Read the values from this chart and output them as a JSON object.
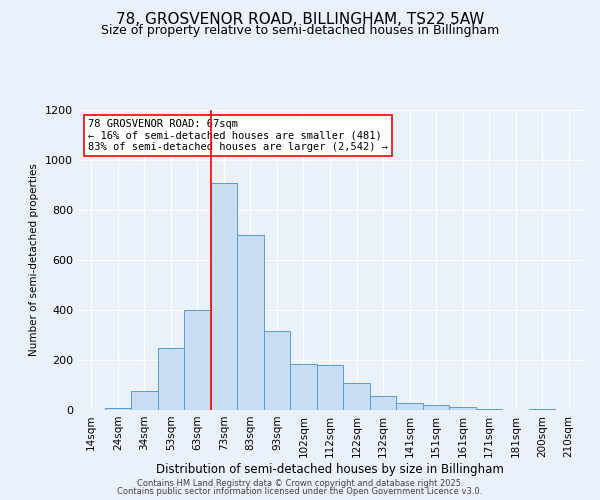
{
  "title": "78, GROSVENOR ROAD, BILLINGHAM, TS22 5AW",
  "subtitle": "Size of property relative to semi-detached houses in Billingham",
  "xlabel": "Distribution of semi-detached houses by size in Billingham",
  "ylabel": "Number of semi-detached properties",
  "bar_labels": [
    "14sqm",
    "24sqm",
    "34sqm",
    "53sqm",
    "63sqm",
    "73sqm",
    "83sqm",
    "93sqm",
    "102sqm",
    "112sqm",
    "122sqm",
    "132sqm",
    "141sqm",
    "151sqm",
    "161sqm",
    "171sqm",
    "181sqm",
    "200sqm",
    "210sqm"
  ],
  "bar_values": [
    0,
    8,
    75,
    250,
    400,
    910,
    700,
    315,
    185,
    180,
    110,
    55,
    30,
    20,
    13,
    5,
    0,
    5,
    0
  ],
  "bar_color": "#c9ddf2",
  "bar_edge_color": "#5b9bd5",
  "vline_x_idx": 4,
  "vline_color": "red",
  "annotation_text": "78 GROSVENOR ROAD: 67sqm\n← 16% of semi-detached houses are smaller (481)\n83% of semi-detached houses are larger (2,542) →",
  "annotation_box_color": "white",
  "annotation_box_edge": "red",
  "ylim": [
    0,
    1200
  ],
  "yticks": [
    0,
    200,
    400,
    600,
    800,
    1000,
    1200
  ],
  "background_color": "#eaf1fb",
  "footer1": "Contains HM Land Registry data © Crown copyright and database right 2025.",
  "footer2": "Contains public sector information licensed under the Open Government Licence v3.0.",
  "title_fontsize": 11,
  "subtitle_fontsize": 9
}
